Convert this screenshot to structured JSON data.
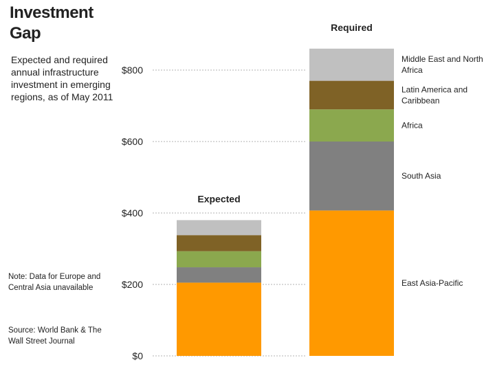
{
  "title": "Investment Gap",
  "subtitle": "Expected and required annual infrastructure investment in emerging regions, as of May 2011",
  "note": "Note: Data for Europe and Central Asia unavailable",
  "source": "Source: World Bank & The Wall Street Journal",
  "chart_data": {
    "type": "bar",
    "stacked": true,
    "categories": [
      "Expected",
      "Required"
    ],
    "series": [
      {
        "name": "East Asia-Pacific",
        "color": "#FF9900",
        "values": [
          205,
          407
        ]
      },
      {
        "name": "South Asia",
        "color": "#808080",
        "values": [
          43,
          193
        ]
      },
      {
        "name": "Africa",
        "color": "#8BA84E",
        "values": [
          45,
          90
        ]
      },
      {
        "name": "Latin America and Caribbean",
        "color": "#7F6226",
        "values": [
          45,
          80
        ]
      },
      {
        "name": "Middle East and North Africa",
        "color": "#C0C0C0",
        "values": [
          42,
          90
        ]
      }
    ],
    "ylim": [
      0,
      800
    ],
    "yticks": [
      0,
      200,
      400,
      600,
      800
    ],
    "ytick_labels": [
      "$0",
      "$200",
      "$400",
      "$600",
      "$800"
    ],
    "grid": true,
    "legend": "right"
  }
}
